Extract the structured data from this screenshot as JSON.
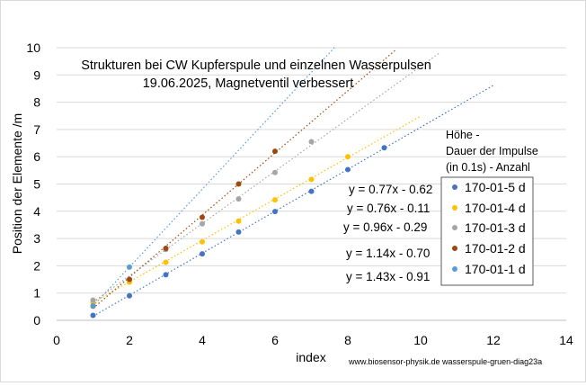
{
  "chart_data": {
    "type": "scatter",
    "title_lines": [
      "Strukturen bei CW Kupferspule und einzelnen Wasserpulsen",
      "19.06.2025, Magnetventil verbessert"
    ],
    "xlabel": "index",
    "ylabel": "Position der Elemente /m",
    "xlim": [
      0,
      14
    ],
    "ylim": [
      0,
      10
    ],
    "xticks": [
      "0",
      "2",
      "4",
      "6",
      "8",
      "10",
      "12",
      "14"
    ],
    "yticks": [
      "0",
      "1",
      "2",
      "3",
      "4",
      "5",
      "6",
      "7",
      "8",
      "9",
      "10"
    ],
    "grid": "horizontal",
    "legend_position": "right",
    "legend_header": [
      "Höhe -",
      "Dauer der Impulse",
      "(in 0.1s) -  Anzahl"
    ],
    "credit": "www.biosensor-physik.de  wasserspule-gruen-diag23a",
    "series": [
      {
        "name": "170-01-5 d",
        "color": "#4472c4",
        "x": [
          1,
          2,
          3,
          4,
          5,
          6,
          7,
          8,
          9
        ],
        "y": [
          0.18,
          0.9,
          1.67,
          2.44,
          3.24,
          3.99,
          4.73,
          5.53,
          6.33
        ],
        "trend": {
          "slope": 0.77,
          "intercept": -0.62,
          "x_end": 12,
          "equation": "y = 0.77x - 0.62"
        }
      },
      {
        "name": "170-01-4 d",
        "color": "#ffc000",
        "x": [
          1,
          2,
          3,
          4,
          5,
          6,
          7,
          8
        ],
        "y": [
          0.65,
          1.4,
          2.13,
          2.88,
          3.64,
          4.42,
          5.17,
          6.0
        ],
        "trend": {
          "slope": 0.76,
          "intercept": -0.11,
          "x_end": 10,
          "equation": "y = 0.76x - 0.11"
        }
      },
      {
        "name": "170-01-3 d",
        "color": "#a5a5a5",
        "x": [
          1,
          2,
          3,
          4,
          5,
          6,
          7
        ],
        "y": [
          0.74,
          1.5,
          2.6,
          3.54,
          4.45,
          5.42,
          6.55
        ],
        "trend": {
          "slope": 0.96,
          "intercept": -0.29,
          "x_end": 10.5,
          "equation": "y = 0.96x - 0.29"
        }
      },
      {
        "name": "170-01-2 d",
        "color": "#9e480e",
        "x": [
          1,
          2,
          3,
          4,
          5,
          6
        ],
        "y": [
          0.52,
          1.5,
          2.64,
          3.78,
          5.0,
          6.2
        ],
        "trend": {
          "slope": 1.14,
          "intercept": -0.7,
          "x_end": 9.3,
          "equation": "y = 1.14x - 0.70"
        }
      },
      {
        "name": "170-01-1 d",
        "color": "#5b9bd5",
        "x": [
          1,
          2
        ],
        "y": [
          0.53,
          1.95
        ],
        "trend": {
          "slope": 1.43,
          "intercept": -0.91,
          "x_end": 7.65,
          "equation": "y = 1.43x - 0.91"
        }
      }
    ]
  }
}
